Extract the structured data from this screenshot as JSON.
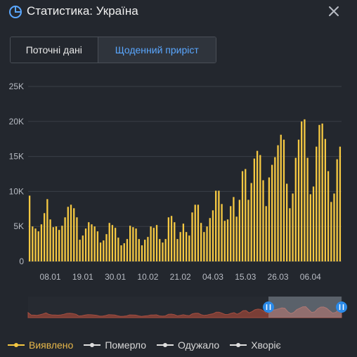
{
  "header": {
    "title": "Статистика: Україна",
    "accent": "#5aa7ff"
  },
  "tabs": [
    {
      "label": "Поточні дані",
      "active": false
    },
    {
      "label": "Щоденний приріст",
      "active": true
    }
  ],
  "chart_data": {
    "type": "bar",
    "ylim": [
      0,
      25000
    ],
    "y_ticks": [
      "0",
      "5K",
      "10K",
      "15K",
      "20K",
      "25K"
    ],
    "x_ticks": [
      "08.01",
      "19.01",
      "30.01",
      "10.02",
      "21.02",
      "04.03",
      "15.03",
      "26.03",
      "06.04"
    ],
    "series": [
      {
        "name": "Виявлено",
        "color": "#f5c842",
        "values": [
          9400,
          5000,
          4700,
          4300,
          5300,
          6900,
          8900,
          6000,
          4900,
          5000,
          4500,
          5100,
          6300,
          7800,
          8100,
          7600,
          6300,
          3100,
          3700,
          4700,
          5600,
          5300,
          5000,
          4300,
          2700,
          3000,
          3900,
          5500,
          5200,
          4800,
          3400,
          2300,
          2600,
          3200,
          5100,
          4900,
          4700,
          3200,
          2300,
          3100,
          3500,
          5000,
          4800,
          5200,
          3200,
          2700,
          3200,
          6300,
          6500,
          5600,
          3200,
          4200,
          5400,
          4200,
          3700,
          7000,
          8100,
          8100,
          5500,
          4200,
          5000,
          6200,
          7300,
          10100,
          10100,
          8200,
          5800,
          6000,
          7900,
          9200,
          6400,
          8800,
          12900,
          13200,
          8800,
          11200,
          14700,
          15800,
          15200,
          11600,
          7900,
          12000,
          13800,
          14900,
          16600,
          18100,
          17400,
          11100,
          7600,
          9700,
          14800,
          17400,
          20000,
          20300,
          14800,
          9600,
          10700,
          16400,
          19500,
          19700,
          17500,
          12900,
          8500,
          9700,
          14600,
          16400
        ]
      }
    ],
    "legend": [
      "Виявлено",
      "Померло",
      "Одужало",
      "Хворіє"
    ]
  },
  "navigator": {
    "selection": "2021-01-01 – 2021-04-12"
  },
  "legend": {
    "items": [
      {
        "label": "Виявлено",
        "color": "#f5c842"
      },
      {
        "label": "Померло",
        "color": "#e0e0e0"
      },
      {
        "label": "Одужало",
        "color": "#e0e0e0"
      },
      {
        "label": "Хворіє",
        "color": "#e0e0e0"
      }
    ]
  }
}
